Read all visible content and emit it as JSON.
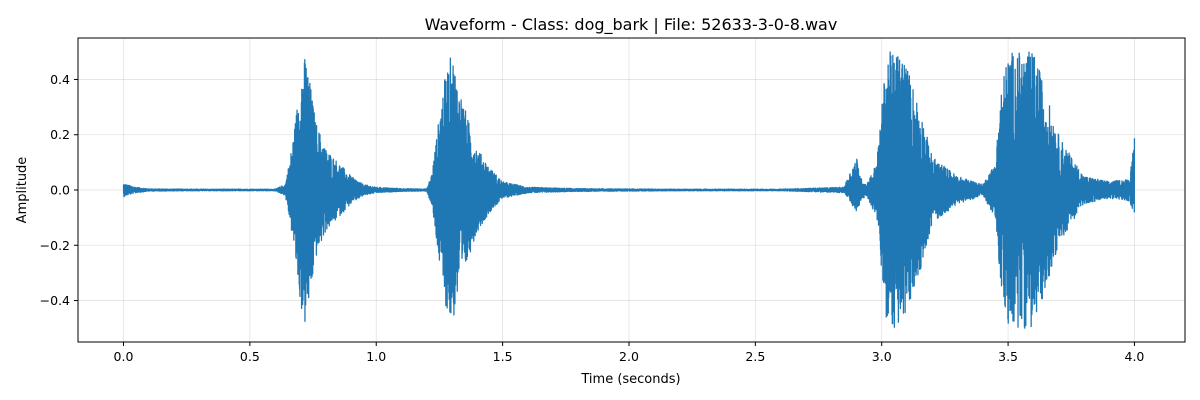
{
  "chart_data": {
    "type": "line",
    "title": "Waveform - Class: dog_bark | File: 52633-3-0-8.wav",
    "xlabel": "Time (seconds)",
    "ylabel": "Amplitude",
    "xlim": [
      -0.18,
      4.2
    ],
    "ylim": [
      -0.55,
      0.55
    ],
    "xticks": [
      0.0,
      0.5,
      1.0,
      1.5,
      2.0,
      2.5,
      3.0,
      3.5,
      4.0
    ],
    "xtick_labels": [
      "0.0",
      "0.5",
      "1.0",
      "1.5",
      "2.0",
      "2.5",
      "3.0",
      "3.5",
      "4.0"
    ],
    "yticks": [
      -0.4,
      -0.2,
      0.0,
      0.2,
      0.4
    ],
    "ytick_labels": [
      "−0.4",
      "−0.2",
      "0.0",
      "0.2",
      "0.4"
    ],
    "grid": true,
    "series": [
      {
        "color": "#1f77b4",
        "envelope": {
          "time": [
            0.0,
            0.01,
            0.05,
            0.1,
            0.3,
            0.6,
            0.64,
            0.66,
            0.68,
            0.7,
            0.72,
            0.74,
            0.76,
            0.8,
            0.85,
            0.9,
            0.95,
            1.0,
            1.1,
            1.2,
            1.22,
            1.24,
            1.26,
            1.28,
            1.3,
            1.32,
            1.35,
            1.38,
            1.4,
            1.45,
            1.5,
            1.6,
            1.8,
            2.2,
            2.6,
            2.85,
            2.9,
            2.92,
            2.94,
            2.98,
            3.0,
            3.02,
            3.05,
            3.08,
            3.1,
            3.15,
            3.2,
            3.3,
            3.4,
            3.45,
            3.47,
            3.5,
            3.52,
            3.55,
            3.58,
            3.6,
            3.62,
            3.65,
            3.7,
            3.75,
            3.8,
            3.9,
            3.98,
            4.0
          ],
          "upper": [
            0.025,
            0.02,
            0.01,
            0.004,
            0.003,
            0.003,
            0.02,
            0.12,
            0.25,
            0.42,
            0.49,
            0.38,
            0.25,
            0.15,
            0.1,
            0.05,
            0.02,
            0.01,
            0.005,
            0.004,
            0.06,
            0.2,
            0.35,
            0.44,
            0.5,
            0.4,
            0.3,
            0.2,
            0.15,
            0.08,
            0.03,
            0.01,
            0.005,
            0.003,
            0.003,
            0.01,
            0.12,
            0.04,
            0.02,
            0.1,
            0.3,
            0.5,
            0.5,
            0.5,
            0.45,
            0.3,
            0.12,
            0.05,
            0.02,
            0.1,
            0.35,
            0.5,
            0.5,
            0.5,
            0.5,
            0.5,
            0.45,
            0.35,
            0.2,
            0.12,
            0.05,
            0.03,
            0.04,
            0.2
          ],
          "lower": [
            -0.025,
            -0.02,
            -0.01,
            -0.004,
            -0.003,
            -0.003,
            -0.02,
            -0.12,
            -0.25,
            -0.42,
            -0.5,
            -0.38,
            -0.25,
            -0.15,
            -0.1,
            -0.05,
            -0.02,
            -0.01,
            -0.005,
            -0.004,
            -0.06,
            -0.2,
            -0.35,
            -0.44,
            -0.5,
            -0.4,
            -0.3,
            -0.2,
            -0.15,
            -0.08,
            -0.03,
            -0.01,
            -0.005,
            -0.003,
            -0.003,
            -0.01,
            -0.08,
            -0.04,
            -0.02,
            -0.1,
            -0.3,
            -0.5,
            -0.5,
            -0.5,
            -0.45,
            -0.3,
            -0.12,
            -0.05,
            -0.02,
            -0.1,
            -0.35,
            -0.5,
            -0.5,
            -0.5,
            -0.5,
            -0.5,
            -0.45,
            -0.35,
            -0.2,
            -0.12,
            -0.05,
            -0.03,
            -0.04,
            -0.09
          ]
        }
      }
    ]
  }
}
